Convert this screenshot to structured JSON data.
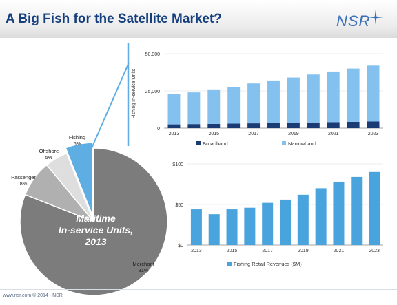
{
  "header": {
    "title": "A Big Fish for the Satellite Market?",
    "logo": "NSR"
  },
  "footer": {
    "text": "www.nsr.com © 2014 - NSR"
  },
  "colors": {
    "title": "#163f7d",
    "narrowband": "#85c1ee",
    "broadband": "#1a3b74",
    "revenue": "#49a3dd",
    "pie_gray": "#7c7c7c",
    "fishing": "#5eaee4"
  },
  "chart_data": [
    {
      "type": "pie",
      "title": "Maritime In-service Units, 2013",
      "slices": [
        {
          "label": "Merchant",
          "value": 81
        },
        {
          "label": "Passenger",
          "value": 8
        },
        {
          "label": "Offshore",
          "value": 5
        },
        {
          "label": "Fishing",
          "value": 6
        }
      ]
    },
    {
      "type": "bar",
      "stacked": true,
      "ylabel": "Fishing In-service Units",
      "yticks": [
        "0",
        "25,000",
        "50,000"
      ],
      "ylim": [
        0,
        50000
      ],
      "categories": [
        "2013",
        "2014",
        "2015",
        "2016",
        "2017",
        "2018",
        "2019",
        "2020",
        "2021",
        "2022",
        "2023"
      ],
      "xtick_labels": [
        "2013",
        "2015",
        "2017",
        "2019",
        "2021",
        "2023"
      ],
      "series": [
        {
          "name": "Broadband",
          "values": [
            2500,
            2700,
            2800,
            3000,
            3200,
            3400,
            3600,
            3800,
            4000,
            4200,
            4400
          ]
        },
        {
          "name": "Narrowband",
          "values": [
            20500,
            21300,
            23200,
            24500,
            26800,
            28600,
            30400,
            32200,
            34000,
            35800,
            37600
          ]
        }
      ],
      "legend_position": "bottom"
    },
    {
      "type": "bar",
      "yticks": [
        "$0",
        "$50",
        "$100"
      ],
      "ylim": [
        0,
        100
      ],
      "categories": [
        "2013",
        "2014",
        "2015",
        "2016",
        "2017",
        "2018",
        "2019",
        "2020",
        "2021",
        "2022",
        "2023"
      ],
      "xtick_labels": [
        "2013",
        "2015",
        "2017",
        "2019",
        "2021",
        "2023"
      ],
      "series": [
        {
          "name": "Fishing Retail Revenues ($M)",
          "values": [
            44,
            38,
            44,
            46,
            52,
            56,
            62,
            70,
            78,
            84,
            90
          ]
        }
      ],
      "legend_position": "bottom"
    }
  ]
}
